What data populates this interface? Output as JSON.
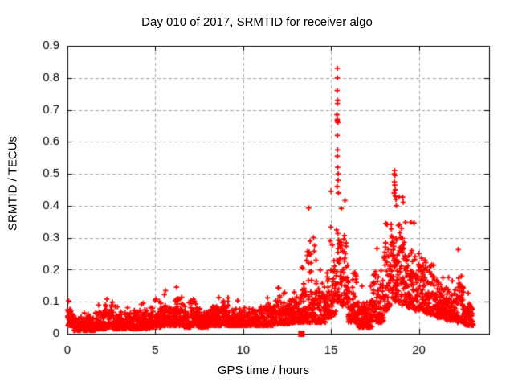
{
  "chart_data": {
    "type": "scatter",
    "title": "Day 010 of 2017, SRMTID for receiver algo",
    "xlabel": "GPS time / hours",
    "ylabel": "SRMTID / TECUs",
    "xlim": [
      0,
      24
    ],
    "ylim": [
      0,
      0.9
    ],
    "xticks": [
      0,
      5,
      10,
      15,
      20
    ],
    "xticklabels": [
      "0",
      "5",
      "10",
      "15",
      "20"
    ],
    "yticks": [
      0,
      0.1,
      0.2,
      0.3,
      0.4,
      0.5,
      0.6,
      0.7,
      0.8,
      0.9
    ],
    "yticklabels": [
      "0",
      "0.1",
      "0.2",
      "0.3",
      "0.4",
      "0.5",
      "0.6",
      "0.7",
      "0.8",
      "0.9"
    ],
    "grid": true,
    "legend": null,
    "marker": "plus",
    "colors": {
      "points": "#ff0000",
      "grid": "#a8a8a8",
      "axis": "#000000",
      "text": "#000000",
      "background": "#ffffff"
    },
    "samples_per_hour": 120,
    "seed": 20170110,
    "density_bands": [
      [
        0.0,
        0.35,
        0.025,
        0.105,
        1.8
      ],
      [
        0.35,
        1.6,
        0.01,
        0.07,
        2.0
      ],
      [
        1.6,
        2.2,
        0.015,
        0.095,
        2.0
      ],
      [
        2.2,
        2.6,
        0.02,
        0.13,
        2.0
      ],
      [
        2.6,
        3.6,
        0.015,
        0.09,
        2.0
      ],
      [
        3.6,
        4.7,
        0.015,
        0.1,
        2.0
      ],
      [
        4.7,
        5.3,
        0.02,
        0.11,
        2.0
      ],
      [
        5.3,
        5.8,
        0.025,
        0.135,
        2.0
      ],
      [
        5.8,
        6.2,
        0.025,
        0.105,
        2.0
      ],
      [
        6.2,
        6.6,
        0.025,
        0.15,
        2.0
      ],
      [
        6.6,
        7.0,
        0.02,
        0.105,
        2.0
      ],
      [
        7.0,
        7.4,
        0.025,
        0.14,
        2.0
      ],
      [
        7.4,
        8.0,
        0.02,
        0.105,
        2.0
      ],
      [
        8.0,
        8.8,
        0.025,
        0.115,
        2.0
      ],
      [
        8.8,
        9.2,
        0.025,
        0.155,
        2.0
      ],
      [
        9.2,
        10.4,
        0.025,
        0.105,
        2.0
      ],
      [
        10.4,
        11.3,
        0.025,
        0.115,
        2.0
      ],
      [
        11.3,
        11.7,
        0.025,
        0.12,
        2.0
      ],
      [
        11.7,
        12.1,
        0.03,
        0.15,
        2.0
      ],
      [
        12.1,
        12.8,
        0.03,
        0.13,
        2.0
      ],
      [
        12.8,
        13.25,
        0.035,
        0.16,
        1.8
      ],
      [
        13.25,
        13.6,
        0.035,
        0.21,
        1.6
      ],
      [
        13.6,
        14.15,
        0.035,
        0.42,
        1.9
      ],
      [
        14.15,
        14.7,
        0.035,
        0.22,
        1.7
      ],
      [
        14.7,
        15.05,
        0.05,
        0.45,
        1.9
      ],
      [
        15.05,
        15.3,
        0.06,
        0.3,
        1.6
      ],
      [
        15.3,
        15.55,
        0.1,
        0.45,
        1.3
      ],
      [
        15.55,
        15.95,
        0.08,
        0.42,
        1.6
      ],
      [
        15.95,
        16.5,
        0.035,
        0.28,
        1.8
      ],
      [
        16.5,
        17.4,
        0.02,
        0.16,
        1.6
      ],
      [
        17.4,
        18.0,
        0.035,
        0.28,
        1.7
      ],
      [
        18.0,
        18.4,
        0.07,
        0.36,
        1.5
      ],
      [
        18.4,
        18.85,
        0.1,
        0.47,
        1.2
      ],
      [
        18.85,
        19.3,
        0.09,
        0.44,
        1.4
      ],
      [
        19.3,
        19.8,
        0.08,
        0.36,
        1.5
      ],
      [
        19.8,
        20.35,
        0.07,
        0.33,
        1.5
      ],
      [
        20.35,
        20.95,
        0.06,
        0.3,
        1.6
      ],
      [
        20.95,
        21.6,
        0.05,
        0.22,
        1.6
      ],
      [
        21.6,
        22.2,
        0.04,
        0.18,
        1.7
      ],
      [
        22.2,
        22.55,
        0.035,
        0.27,
        1.8
      ],
      [
        22.55,
        23.1,
        0.025,
        0.13,
        1.8
      ]
    ],
    "peak_points": [
      [
        15.36,
        0.83
      ],
      [
        15.36,
        0.8
      ],
      [
        15.35,
        0.76
      ],
      [
        15.38,
        0.73
      ],
      [
        15.37,
        0.72
      ],
      [
        15.34,
        0.685
      ],
      [
        15.36,
        0.67
      ],
      [
        15.35,
        0.665
      ],
      [
        15.39,
        0.66
      ],
      [
        15.36,
        0.62
      ],
      [
        15.37,
        0.575
      ],
      [
        15.36,
        0.555
      ],
      [
        15.38,
        0.52
      ],
      [
        15.41,
        0.5
      ],
      [
        15.4,
        0.48
      ],
      [
        15.35,
        0.46
      ],
      [
        15.42,
        0.44
      ],
      [
        18.62,
        0.51
      ],
      [
        18.6,
        0.5
      ],
      [
        18.64,
        0.495
      ],
      [
        18.61,
        0.475
      ],
      [
        18.63,
        0.465
      ],
      [
        18.66,
        0.45
      ],
      [
        18.59,
        0.44
      ],
      [
        18.65,
        0.43
      ],
      [
        18.7,
        0.42
      ],
      [
        18.72,
        0.4
      ]
    ],
    "zero_marker": {
      "x": 13.32,
      "y": 0,
      "marker": "filled-square"
    }
  }
}
